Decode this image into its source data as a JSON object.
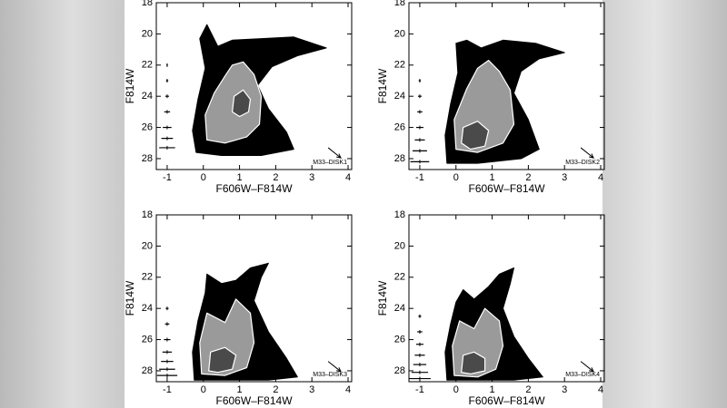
{
  "chart_data": [
    {
      "type": "scatter",
      "x_label": "F606W–F814W",
      "y_label": "F814W",
      "label": "M33–DISK1",
      "xlim": [
        -1.3,
        4.1
      ],
      "ylim": [
        18,
        28.7
      ],
      "y_inverted": true,
      "xticks": [
        -1,
        0,
        1,
        2,
        3,
        4
      ],
      "yticks": [
        18,
        20,
        22,
        24,
        26,
        28
      ],
      "series": [
        {
          "color": "#000000",
          "x": [
            -0.2,
            -0.3,
            -0.15,
            0.05,
            -0.1,
            0.1,
            0.4,
            0.8,
            1.6,
            2.5,
            3.4,
            2.6,
            1.9,
            1.5,
            1.8,
            2.3,
            2.5,
            1.6,
            0.5
          ],
          "values": [
            27.6,
            26.2,
            24.2,
            22.2,
            20.3,
            19.4,
            20.8,
            20.4,
            20.3,
            20.2,
            20.9,
            21.4,
            22.1,
            23.3,
            24.8,
            26.3,
            27.4,
            27.8,
            27.8
          ]
        },
        {
          "color": "#9a9a9a",
          "x": [
            0.1,
            0.05,
            0.3,
            0.6,
            0.8,
            1.1,
            1.4,
            1.6,
            1.55,
            1.2,
            0.6
          ],
          "values": [
            26.8,
            25.2,
            23.8,
            22.7,
            22.0,
            21.8,
            22.6,
            24.0,
            25.8,
            26.6,
            27.0
          ]
        },
        {
          "color": "#4a4a4a",
          "x": [
            0.8,
            0.85,
            1.1,
            1.3,
            1.25,
            1.0
          ],
          "values": [
            25.0,
            24.0,
            23.6,
            24.2,
            25.0,
            25.3
          ]
        }
      ],
      "error_bars": {
        "x": [
          -1,
          -1,
          -1,
          -1,
          -1,
          -1,
          -1
        ],
        "values": [
          22,
          23,
          24,
          25,
          26,
          26.7,
          27.3
        ],
        "xerr": [
          0.02,
          0.03,
          0.05,
          0.08,
          0.12,
          0.16,
          0.22
        ]
      },
      "arrow": {
        "x": [
          3.45,
          3.8
        ],
        "values": [
          27.3,
          27.95
        ]
      }
    },
    {
      "type": "scatter",
      "x_label": "F606W–F814W",
      "y_label": "F814W",
      "label": "M33–DISK2",
      "xlim": [
        -1.3,
        4.1
      ],
      "ylim": [
        18,
        28.7
      ],
      "y_inverted": true,
      "xticks": [
        -1,
        0,
        1,
        2,
        3,
        4
      ],
      "yticks": [
        18,
        20,
        22,
        24,
        26,
        28
      ],
      "series": [
        {
          "color": "#000000",
          "x": [
            -0.25,
            -0.3,
            -0.15,
            0.05,
            0.0,
            0.3,
            0.7,
            1.3,
            2.2,
            3.0,
            2.3,
            1.8,
            1.6,
            2.0,
            2.3,
            1.8,
            0.6
          ],
          "values": [
            28.3,
            26.5,
            24.5,
            22.5,
            20.6,
            20.4,
            20.9,
            20.4,
            20.6,
            21.2,
            21.6,
            22.4,
            23.8,
            25.5,
            27.4,
            28.0,
            28.3
          ]
        },
        {
          "color": "#9a9a9a",
          "x": [
            0.0,
            -0.05,
            0.3,
            0.6,
            0.9,
            1.2,
            1.5,
            1.6,
            1.3,
            0.6
          ],
          "values": [
            27.4,
            25.5,
            23.5,
            22.2,
            21.7,
            22.4,
            23.6,
            25.8,
            27.0,
            27.6
          ]
        },
        {
          "color": "#4a4a4a",
          "x": [
            0.15,
            0.2,
            0.6,
            0.9,
            0.8,
            0.4
          ],
          "values": [
            27.0,
            26.0,
            25.6,
            26.2,
            27.2,
            27.4
          ]
        }
      ],
      "error_bars": {
        "x": [
          -1,
          -1,
          -1,
          -1,
          -1,
          -1,
          -1
        ],
        "values": [
          23,
          24,
          25,
          26,
          26.8,
          27.5,
          28.2
        ],
        "xerr": [
          0.03,
          0.05,
          0.07,
          0.1,
          0.14,
          0.2,
          0.26
        ]
      },
      "arrow": {
        "x": [
          3.45,
          3.8
        ],
        "values": [
          27.3,
          27.95
        ]
      }
    },
    {
      "type": "scatter",
      "x_label": "F606W–F814W",
      "y_label": "F814W",
      "label": "M33–DISK3",
      "xlim": [
        -1.3,
        4.1
      ],
      "ylim": [
        18,
        28.7
      ],
      "y_inverted": true,
      "xticks": [
        -1,
        0,
        1,
        2,
        3,
        4
      ],
      "yticks": [
        18,
        20,
        22,
        24,
        26,
        28
      ],
      "series": [
        {
          "color": "#000000",
          "x": [
            -0.25,
            -0.3,
            -0.15,
            0.05,
            0.1,
            0.5,
            0.9,
            1.3,
            1.8,
            1.6,
            1.4,
            1.8,
            2.3,
            2.6,
            1.8,
            0.6
          ],
          "values": [
            28.6,
            26.8,
            24.8,
            23.0,
            21.8,
            22.4,
            22.2,
            21.4,
            21.1,
            22.0,
            23.5,
            25.5,
            27.2,
            28.4,
            28.6,
            28.6
          ]
        },
        {
          "color": "#9a9a9a",
          "x": [
            -0.05,
            -0.1,
            0.1,
            0.6,
            0.9,
            1.3,
            1.4,
            1.2,
            0.6
          ],
          "values": [
            28.2,
            26.2,
            24.3,
            24.9,
            23.4,
            24.3,
            26.2,
            27.8,
            28.3
          ]
        },
        {
          "color": "#4a4a4a",
          "x": [
            0.15,
            0.2,
            0.6,
            0.9,
            0.8,
            0.4
          ],
          "values": [
            28.0,
            26.8,
            26.5,
            27.0,
            27.9,
            28.1
          ]
        }
      ],
      "error_bars": {
        "x": [
          -1,
          -1,
          -1,
          -1,
          -1,
          -1,
          -1
        ],
        "values": [
          24,
          25,
          26,
          26.8,
          27.4,
          27.9,
          28.3
        ],
        "xerr": [
          0.04,
          0.06,
          0.09,
          0.13,
          0.17,
          0.22,
          0.28
        ]
      },
      "arrow": {
        "x": [
          3.45,
          3.8
        ],
        "values": [
          27.4,
          28.05
        ]
      }
    },
    {
      "type": "scatter",
      "x_label": "F606W–F814W",
      "y_label": "F814W",
      "label": "M33–DISK4",
      "xlim": [
        -1.3,
        4.1
      ],
      "ylim": [
        18,
        28.7
      ],
      "y_inverted": true,
      "xticks": [
        -1,
        0,
        1,
        2,
        3,
        4
      ],
      "yticks": [
        18,
        20,
        22,
        24,
        26,
        28
      ],
      "series": [
        {
          "color": "#000000",
          "x": [
            -0.25,
            -0.3,
            -0.15,
            0.0,
            0.2,
            0.5,
            0.9,
            1.2,
            1.6,
            1.5,
            1.3,
            1.6,
            2.0,
            2.4,
            1.6,
            0.5
          ],
          "values": [
            28.6,
            26.8,
            25.0,
            23.6,
            22.8,
            23.4,
            22.6,
            21.8,
            21.4,
            22.4,
            24.0,
            25.8,
            27.2,
            28.4,
            28.6,
            28.6
          ]
        },
        {
          "color": "#9a9a9a",
          "x": [
            -0.05,
            -0.1,
            0.1,
            0.5,
            0.8,
            1.2,
            1.3,
            1.1,
            0.6
          ],
          "values": [
            28.3,
            26.4,
            24.8,
            25.3,
            24.0,
            24.8,
            26.4,
            27.9,
            28.4
          ]
        },
        {
          "color": "#4a4a4a",
          "x": [
            0.15,
            0.2,
            0.5,
            0.8,
            0.8,
            0.4
          ],
          "values": [
            28.1,
            27.0,
            26.8,
            27.2,
            28.0,
            28.2
          ]
        }
      ],
      "error_bars": {
        "x": [
          -1,
          -1,
          -1,
          -1,
          -1,
          -1,
          -1
        ],
        "values": [
          24.5,
          25.5,
          26.3,
          27.0,
          27.6,
          28.1,
          28.5
        ],
        "xerr": [
          0.04,
          0.07,
          0.1,
          0.14,
          0.18,
          0.23,
          0.3
        ]
      },
      "arrow": {
        "x": [
          3.45,
          3.8
        ],
        "values": [
          27.4,
          28.05
        ]
      }
    }
  ]
}
